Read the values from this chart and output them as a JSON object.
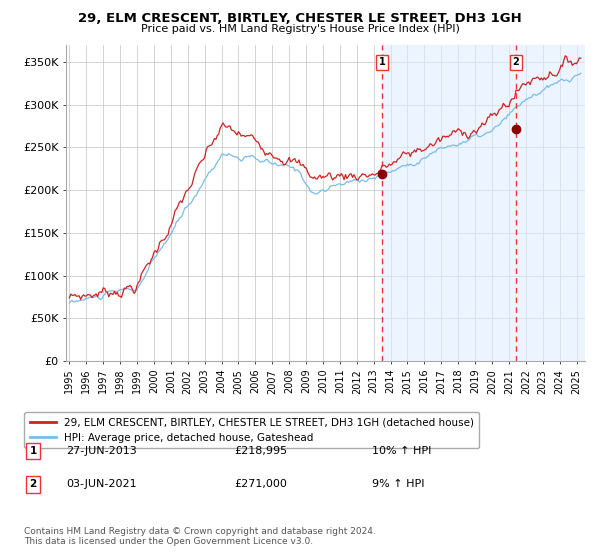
{
  "title": "29, ELM CRESCENT, BIRTLEY, CHESTER LE STREET, DH3 1GH",
  "subtitle": "Price paid vs. HM Land Registry's House Price Index (HPI)",
  "legend_line1": "29, ELM CRESCENT, BIRTLEY, CHESTER LE STREET, DH3 1GH (detached house)",
  "legend_line2": "HPI: Average price, detached house, Gateshead",
  "annotation1_label": "1",
  "annotation1_date": "27-JUN-2013",
  "annotation1_price": "£218,995",
  "annotation1_hpi": "10% ↑ HPI",
  "annotation2_label": "2",
  "annotation2_date": "03-JUN-2021",
  "annotation2_price": "£271,000",
  "annotation2_hpi": "9% ↑ HPI",
  "sale1_date_num": 2013.49,
  "sale1_price": 218995,
  "sale2_date_num": 2021.42,
  "sale2_price": 271000,
  "ylim": [
    0,
    370000
  ],
  "yticks": [
    0,
    50000,
    100000,
    150000,
    200000,
    250000,
    300000,
    350000
  ],
  "ytick_labels": [
    "£0",
    "£50K",
    "£100K",
    "£150K",
    "£200K",
    "£250K",
    "£300K",
    "£350K"
  ],
  "line_color_hpi": "#7bbce8",
  "line_color_price": "#cc2222",
  "dot_color": "#8b0000",
  "vline_color": "#ee3333",
  "shading_color": "#ddeeff",
  "shading_alpha": 0.55,
  "background_color": "#ffffff",
  "grid_color": "#cccccc",
  "footer": "Contains HM Land Registry data © Crown copyright and database right 2024.\nThis data is licensed under the Open Government Licence v3.0.",
  "xlim_start": 1994.8,
  "xlim_end": 2025.5
}
